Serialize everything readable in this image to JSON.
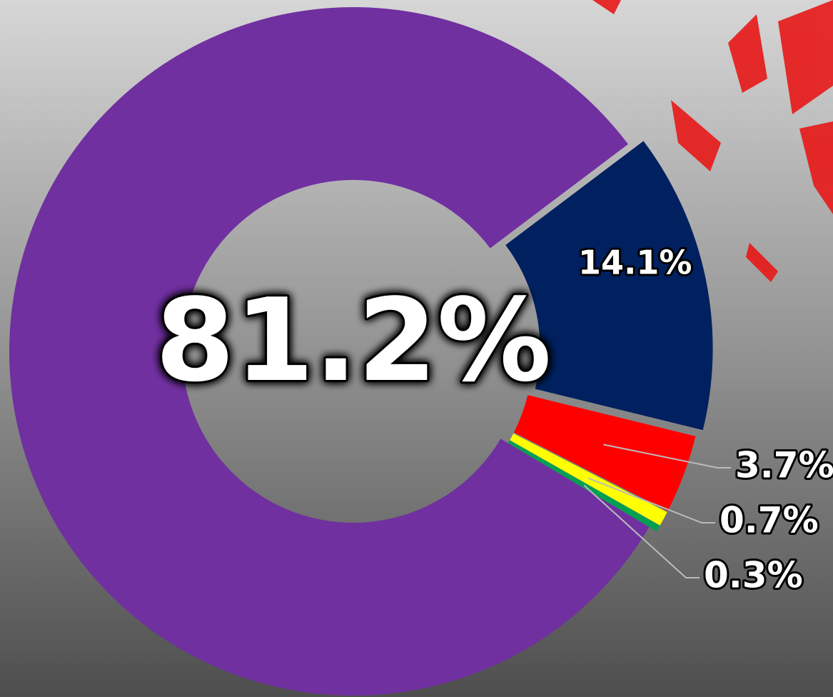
{
  "chart_data": {
    "type": "donut",
    "values": [
      81.2,
      14.1,
      3.7,
      0.7,
      0.3
    ],
    "value_labels": [
      "81.2%",
      "14.1%",
      "3.7%",
      "0.7%",
      "0.3%"
    ],
    "colors": [
      "#7030a0",
      "#002060",
      "#ff0000",
      "#ffff00",
      "#00a050"
    ]
  }
}
